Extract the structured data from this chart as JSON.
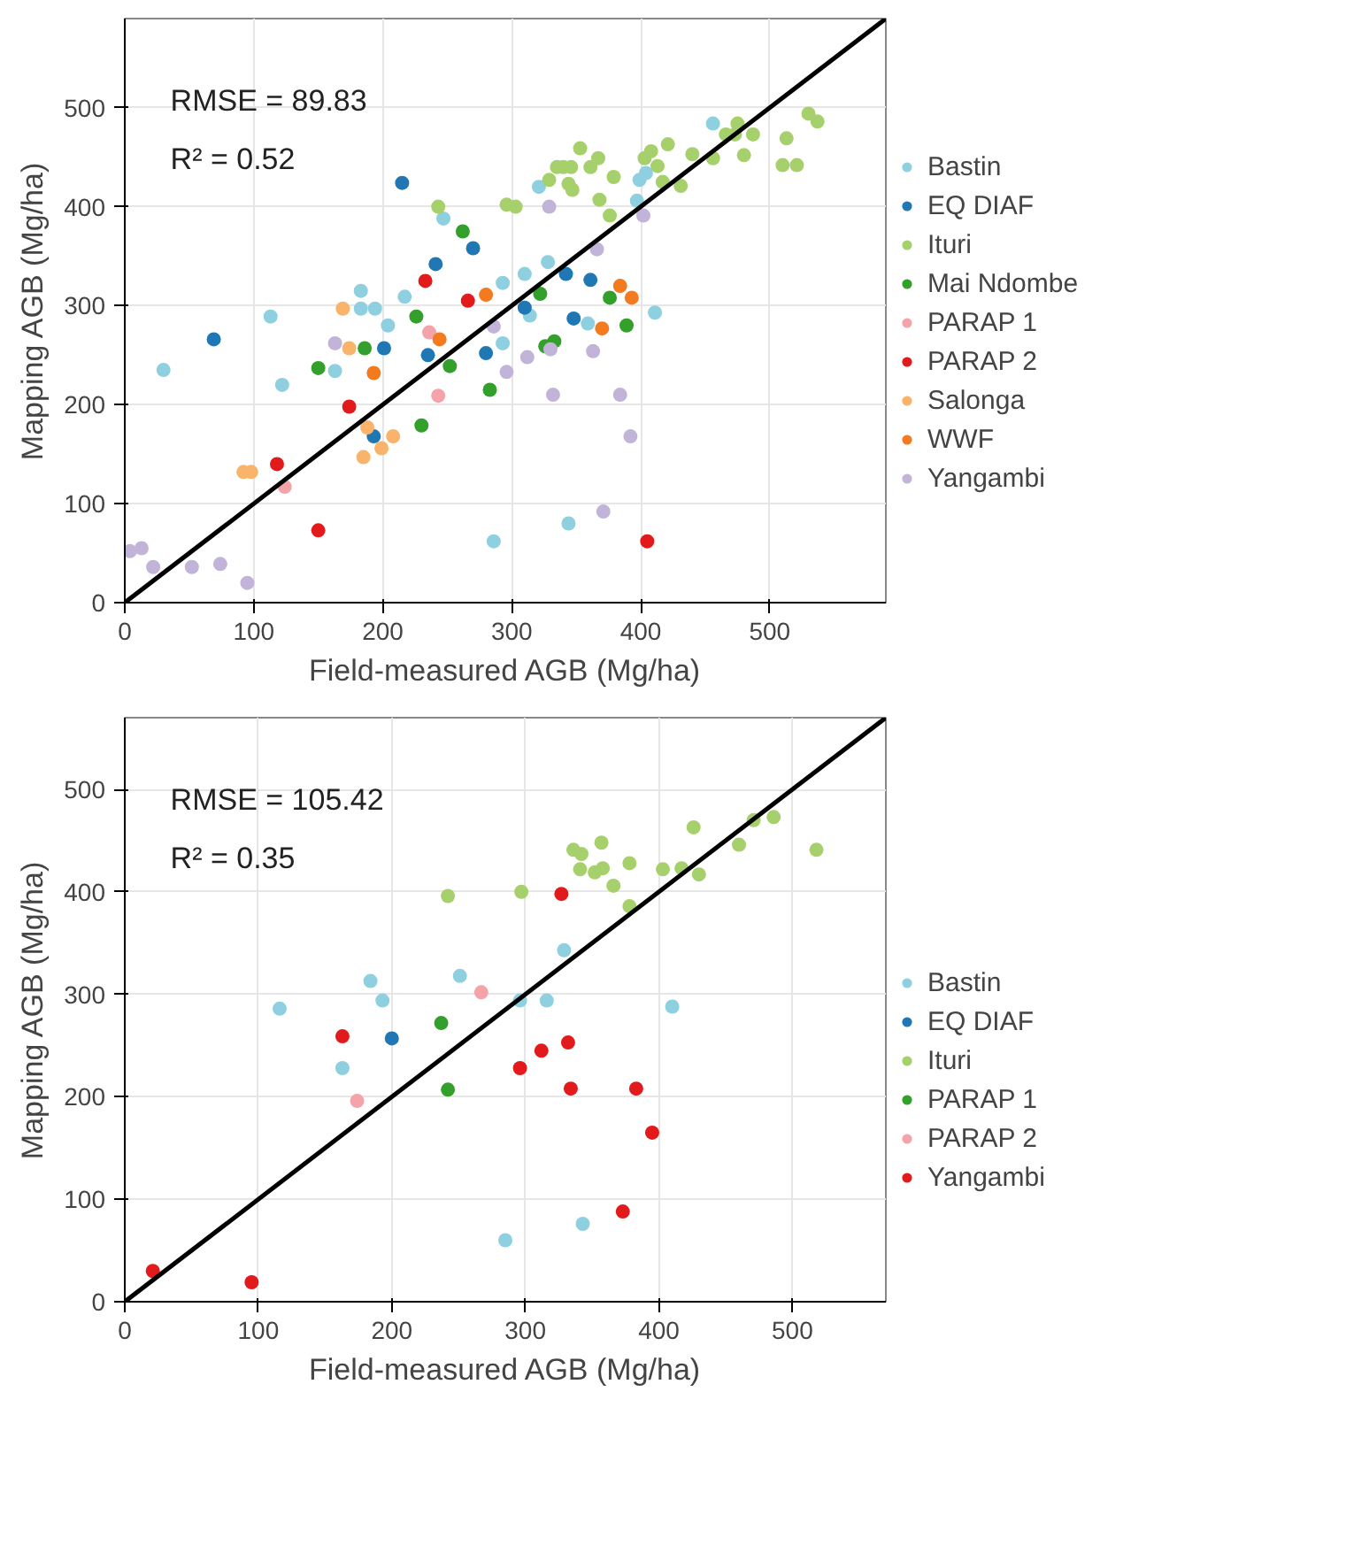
{
  "chart_data": [
    {
      "type": "scatter",
      "xlabel": "Field-measured AGB (Mg/ha)",
      "ylabel": "Mapping AGB (Mg/ha)",
      "annotations": [
        "RMSE = 89.83",
        "R² = 0.52"
      ],
      "xlim": [
        0,
        590
      ],
      "ylim": [
        0,
        590
      ],
      "xticks": [
        0,
        100,
        200,
        300,
        400,
        500
      ],
      "yticks": [
        0,
        100,
        200,
        300,
        400,
        500
      ],
      "grid": true,
      "legend": "right",
      "marker": "circle",
      "series": [
        {
          "name": "Bastin",
          "color": "#8ecfe0",
          "x": [
            247,
            183,
            217,
            293,
            328,
            183,
            194,
            113,
            204,
            163,
            30,
            122,
            293,
            286,
            456,
            321,
            399,
            404,
            397,
            310,
            411,
            359,
            314,
            344
          ],
          "values": [
            388,
            315,
            309,
            323,
            344,
            297,
            297,
            289,
            280,
            234,
            235,
            220,
            262,
            62,
            484,
            420,
            427,
            434,
            406,
            332,
            293,
            282,
            290,
            80
          ]
        },
        {
          "name": "EQ DIAF",
          "color": "#1f78b4",
          "x": [
            215,
            270,
            241,
            201,
            235,
            69,
            280,
            193,
            342,
            361,
            348,
            310
          ],
          "values": [
            424,
            358,
            342,
            257,
            250,
            266,
            252,
            168,
            332,
            326,
            287,
            298
          ]
        },
        {
          "name": "Ituri",
          "color": "#a6d06b",
          "x": [
            243,
            296,
            303,
            475,
            466,
            473,
            487,
            513,
            530,
            537,
            353,
            335,
            340,
            346,
            367,
            361,
            379,
            403,
            408,
            421,
            440,
            456,
            480,
            510,
            521,
            413,
            417,
            431,
            329,
            344,
            368,
            376,
            347
          ],
          "values": [
            400,
            402,
            400,
            484,
            473,
            473,
            473,
            469,
            494,
            486,
            459,
            440,
            440,
            440,
            449,
            440,
            430,
            449,
            456,
            463,
            453,
            449,
            452,
            442,
            442,
            441,
            425,
            421,
            427,
            423,
            407,
            391,
            417
          ]
        },
        {
          "name": "Mai Ndombe",
          "color": "#33a02c",
          "x": [
            262,
            322,
            186,
            226,
            252,
            150,
            283,
            333,
            230,
            376,
            389,
            326
          ],
          "values": [
            375,
            312,
            257,
            289,
            239,
            237,
            215,
            264,
            179,
            308,
            280,
            259
          ]
        },
        {
          "name": "PARAP 1",
          "color": "#f4a3a8",
          "x": [
            236,
            243,
            124
          ],
          "values": [
            273,
            209,
            117
          ]
        },
        {
          "name": "PARAP 2",
          "color": "#e31a1c",
          "x": [
            233,
            266,
            174,
            118,
            150,
            405
          ],
          "values": [
            325,
            305,
            198,
            140,
            73,
            62
          ]
        },
        {
          "name": "Salonga",
          "color": "#f9b36a",
          "x": [
            169,
            174,
            188,
            208,
            199,
            185,
            92,
            98
          ],
          "values": [
            297,
            257,
            177,
            168,
            156,
            147,
            132,
            132
          ]
        },
        {
          "name": "WWF",
          "color": "#f47a20",
          "x": [
            280,
            244,
            193,
            384,
            393,
            370
          ],
          "values": [
            311,
            266,
            232,
            320,
            308,
            277
          ]
        },
        {
          "name": "Yangambi",
          "color": "#c2b3d8",
          "x": [
            163,
            296,
            286,
            312,
            13,
            4,
            22,
            52,
            74,
            95,
            329,
            402,
            366,
            330,
            363,
            332,
            384,
            392,
            371
          ],
          "values": [
            262,
            233,
            279,
            248,
            55,
            52,
            36,
            36,
            39,
            20,
            400,
            391,
            357,
            256,
            254,
            210,
            210,
            168,
            92
          ]
        },
        {
          "type": "line",
          "color": "#000000",
          "marker": "none",
          "x": [
            0,
            590
          ],
          "values": [
            0,
            590
          ]
        }
      ]
    },
    {
      "type": "scatter",
      "xlabel": "Field-measured AGB (Mg/ha)",
      "ylabel": "Mapping AGB (Mg/ha)",
      "annotations": [
        "RMSE = 105.42",
        "R² = 0.35"
      ],
      "xlim": [
        0,
        570
      ],
      "ylim": [
        0,
        570
      ],
      "xticks": [
        0,
        100,
        200,
        300,
        400,
        500
      ],
      "yticks": [
        0,
        100,
        200,
        300,
        400,
        500
      ],
      "grid": true,
      "legend": "right",
      "marker": "circle",
      "series": [
        {
          "name": "Bastin",
          "color": "#8ecfe0",
          "x": [
            251,
            184,
            193,
            116,
            163,
            285,
            329,
            296,
            316,
            410,
            343
          ],
          "values": [
            318,
            313,
            294,
            286,
            228,
            60,
            343,
            294,
            294,
            288,
            76
          ]
        },
        {
          "name": "EQ DIAF",
          "color": "#1f78b4",
          "x": [
            200
          ],
          "values": [
            257
          ]
        },
        {
          "name": "Ituri",
          "color": "#a6d06b",
          "x": [
            242,
            297,
            336,
            342,
            357,
            341,
            352,
            358,
            378,
            366,
            378,
            403,
            417,
            426,
            430,
            460,
            471,
            486,
            518
          ],
          "values": [
            396,
            400,
            441,
            437,
            448,
            422,
            419,
            423,
            428,
            406,
            386,
            422,
            423,
            463,
            417,
            446,
            470,
            473,
            441
          ]
        },
        {
          "name": "PARAP 1",
          "color": "#33a02c",
          "x": [
            237,
            242
          ],
          "values": [
            272,
            207
          ]
        },
        {
          "name": "PARAP 2",
          "color": "#f4a3a8",
          "x": [
            267,
            174
          ],
          "values": [
            302,
            196
          ]
        },
        {
          "name": "Yangambi",
          "color": "#e31a1c",
          "x": [
            163,
            21,
            95,
            327,
            312,
            332,
            296,
            334,
            383,
            395,
            373
          ],
          "values": [
            259,
            30,
            19,
            398,
            245,
            253,
            228,
            208,
            208,
            165,
            88
          ]
        },
        {
          "type": "line",
          "color": "#000000",
          "marker": "none",
          "x": [
            0,
            570
          ],
          "values": [
            0,
            570
          ]
        }
      ]
    }
  ]
}
